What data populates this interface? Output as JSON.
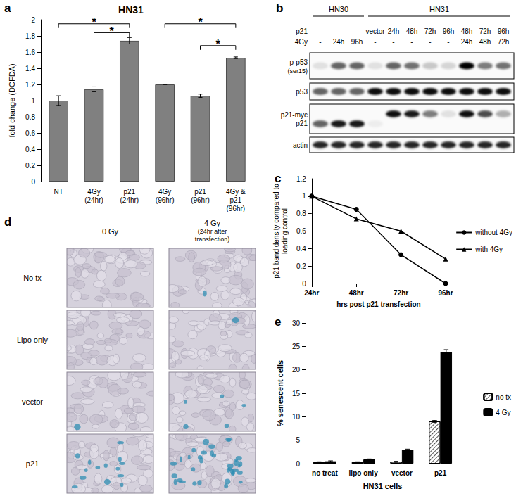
{
  "panel_labels": [
    "a",
    "b",
    "c",
    "d",
    "e"
  ],
  "chart_data": [
    {
      "type": "bar",
      "title": "HN31",
      "ylabel": "fold change (DCFDA)",
      "categories": [
        "NT",
        "4Gy\n(24hr)",
        "p21\n(24hr)",
        "4Gy\n(96hr)",
        "p21\n(96hr)",
        "4Gy &\np21\n(96hr)"
      ],
      "values": [
        1.0,
        1.14,
        1.74,
        1.2,
        1.06,
        1.53
      ],
      "errors": [
        0.06,
        0.03,
        0.04,
        0.0,
        0.02,
        0.01
      ],
      "color": "#808080",
      "ylim": [
        0,
        2
      ],
      "yticks": [
        0,
        0.2,
        0.4,
        0.6,
        0.8,
        1,
        1.2,
        1.4,
        1.6,
        1.8,
        2
      ],
      "grid": false,
      "significance": [
        {
          "from": "NT",
          "to": "p21\n(24hr)",
          "y": 1.95,
          "label": "*"
        },
        {
          "from": "4Gy\n(24hr)",
          "to": "p21\n(24hr)",
          "y": 1.84,
          "label": "*"
        },
        {
          "from": "4Gy\n(96hr)",
          "to": "4Gy &\np21\n(96hr)",
          "y": 1.95,
          "label": "*"
        },
        {
          "from": "p21\n(96hr)",
          "to": "4Gy &\np21\n(96hr)",
          "y": 1.68,
          "label": "*"
        }
      ]
    },
    {
      "type": "line",
      "xlabel": "hrs post p21 transfection",
      "ylabel": "p21 band density compared to\nloading control",
      "categories": [
        "24hr",
        "48hr",
        "72hr",
        "96hr"
      ],
      "series": [
        {
          "name": "without 4Gy",
          "color": "#000000",
          "marker": "circle",
          "values": [
            1.0,
            0.85,
            0.33,
            0.0
          ]
        },
        {
          "name": "with 4Gy",
          "color": "#000000",
          "marker": "triangle",
          "values": [
            1.0,
            0.74,
            0.6,
            0.28
          ]
        }
      ],
      "ylim": [
        0,
        1.2
      ],
      "yticks": [
        0,
        0.2,
        0.4,
        0.6,
        0.8,
        1,
        1.2
      ],
      "legend": "right",
      "grid": false
    },
    {
      "type": "bar",
      "xlabel": "HN31 cells",
      "ylabel": "% senescent cells",
      "categories": [
        "no treat",
        "lipo only",
        "vector",
        "p21"
      ],
      "series": [
        {
          "name": "no tx",
          "color": "#ffffff",
          "values": [
            0.3,
            0.3,
            0.4,
            9.0
          ],
          "errors": [
            0.1,
            0.1,
            0.1,
            0.2
          ]
        },
        {
          "name": "4 Gy",
          "color": "#000000",
          "values": [
            0.5,
            0.9,
            3.0,
            23.8
          ],
          "errors": [
            0.1,
            0.1,
            0.1,
            0.5
          ]
        }
      ],
      "ylim": [
        0,
        30
      ],
      "yticks": [
        0,
        5,
        10,
        15,
        20,
        25,
        30
      ],
      "legend": "right",
      "grid": false
    }
  ],
  "blot": {
    "cell_lines": [
      {
        "label": "HN30",
        "lanes": 3
      },
      {
        "label": "HN31",
        "lanes": 8
      }
    ],
    "conditions": [
      {
        "label": "p21",
        "values": [
          "-",
          "-",
          "-",
          "vector",
          "24h",
          "48h",
          "72h",
          "96h",
          "48h",
          "72h",
          "96h"
        ]
      },
      {
        "label": "4Gy",
        "values": [
          "-",
          "24h",
          "96h",
          "-",
          "-",
          "-",
          "-",
          "-",
          "24h",
          "48h",
          "72h"
        ]
      }
    ],
    "rows": [
      {
        "label": "p-p53\n(ser15)",
        "bands": [
          [
            0.1,
            0.6,
            0.6,
            0.1,
            0.6,
            0.55,
            0.2,
            0.15,
            1.0,
            0.5,
            0.55
          ]
        ]
      },
      {
        "label": "p53",
        "bands": [
          [
            0.6,
            0.6,
            0.6,
            0.95,
            0.95,
            0.95,
            0.95,
            0.95,
            0.95,
            0.95,
            0.95
          ]
        ]
      },
      {
        "label": "p21-myc\np21",
        "bands": [
          [
            0.0,
            0.0,
            0.0,
            0.0,
            0.95,
            0.9,
            0.5,
            0.1,
            0.95,
            0.7,
            0.3
          ],
          [
            0.6,
            0.9,
            0.9,
            0.05,
            0.0,
            0.0,
            0.0,
            0.0,
            0.0,
            0.0,
            0.0
          ]
        ]
      },
      {
        "label": "actin",
        "bands": [
          [
            0.85,
            0.85,
            0.85,
            0.85,
            0.85,
            0.85,
            0.85,
            0.85,
            0.85,
            0.85,
            0.85
          ]
        ]
      }
    ]
  },
  "micrographs": {
    "columns": [
      "0 Gy",
      "4 Gy\n(24hr after\ntransfection)"
    ],
    "rows": [
      "No tx",
      "Lipo only",
      "vector",
      "p21"
    ]
  }
}
